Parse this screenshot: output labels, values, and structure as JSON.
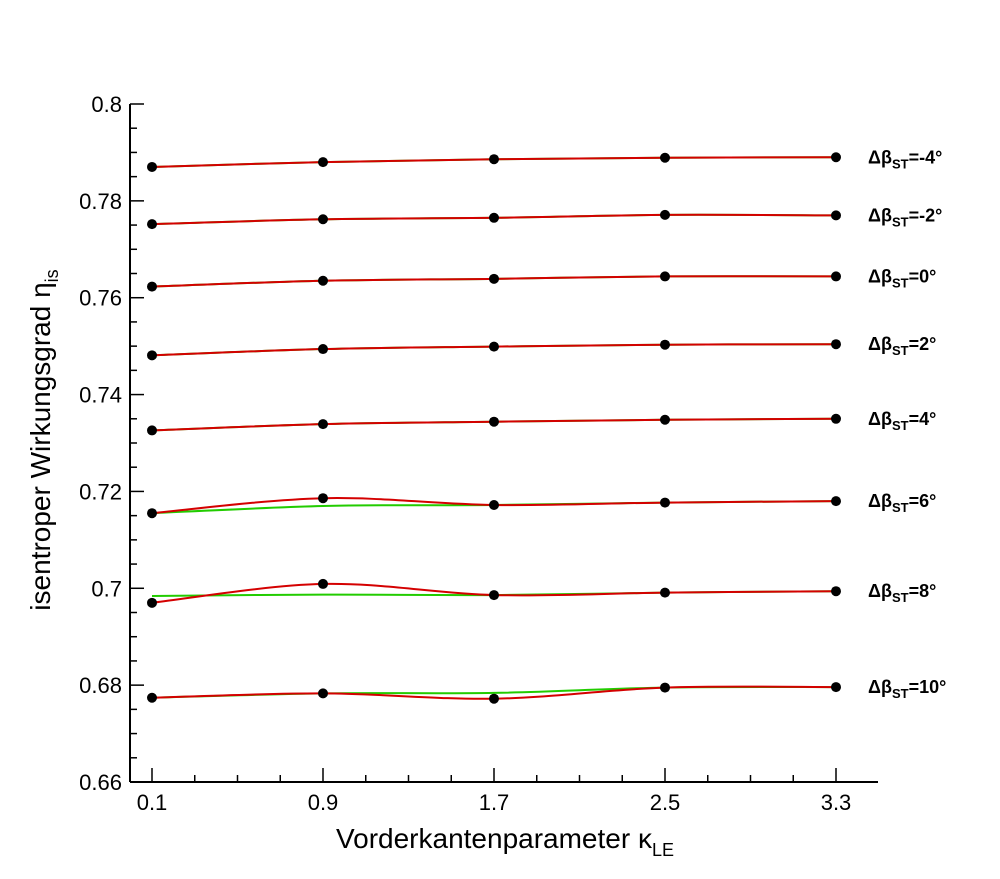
{
  "chart_data": {
    "type": "line",
    "title": "",
    "xlabel": {
      "text": "Vorderkantenparameter κ",
      "sub": "LE"
    },
    "ylabel": {
      "text": "isentroper Wirkungsgrad η",
      "sub": "is"
    },
    "x": [
      0.1,
      0.9,
      1.7,
      2.5,
      3.3
    ],
    "xticks": [
      "0.1",
      "0.9",
      "1.7",
      "2.5",
      "3.3"
    ],
    "xlim": [
      0.0,
      3.43
    ],
    "ylim": [
      0.66,
      0.8
    ],
    "yticks": [
      "0.66",
      "0.68",
      "0.7",
      "0.72",
      "0.74",
      "0.76",
      "0.78",
      "0.8"
    ],
    "grid": false,
    "legend": "none",
    "colors": {
      "fit": "#d40000",
      "linear": "#22cc00",
      "marker": "#000000"
    },
    "series": [
      {
        "label": {
          "main": "Δβ",
          "sub": "ST",
          "tail": "=-4°"
        },
        "values": [
          0.787,
          0.788,
          0.7886,
          0.7889,
          0.789
        ]
      },
      {
        "label": {
          "main": "Δβ",
          "sub": "ST",
          "tail": "=-2°"
        },
        "values": [
          0.7752,
          0.7762,
          0.7765,
          0.7771,
          0.777
        ]
      },
      {
        "label": {
          "main": "Δβ",
          "sub": "ST",
          "tail": "=0°"
        },
        "values": [
          0.7623,
          0.7635,
          0.7639,
          0.7644,
          0.7644
        ]
      },
      {
        "label": {
          "main": "Δβ",
          "sub": "ST",
          "tail": "=2°"
        },
        "values": [
          0.7481,
          0.7494,
          0.7499,
          0.7503,
          0.7504
        ]
      },
      {
        "label": {
          "main": "Δβ",
          "sub": "ST",
          "tail": "=4°"
        },
        "values": [
          0.7326,
          0.7339,
          0.7344,
          0.7348,
          0.735
        ]
      },
      {
        "label": {
          "main": "Δβ",
          "sub": "ST",
          "tail": "=6°"
        },
        "values": [
          0.7155,
          0.7186,
          0.7172,
          0.7177,
          0.718
        ],
        "fit_overshoot": [
          0.7155,
          0.7186,
          0.7172,
          0.7177,
          0.718
        ]
      },
      {
        "label": {
          "main": "Δβ",
          "sub": "ST",
          "tail": "=8°"
        },
        "values": [
          0.697,
          0.7009,
          0.6986,
          0.6991,
          0.6994
        ]
      },
      {
        "label": {
          "main": "Δβ",
          "sub": "ST",
          "tail": "=10°"
        },
        "values": [
          0.6774,
          0.6783,
          0.6772,
          0.6795,
          0.6796
        ]
      }
    ]
  }
}
